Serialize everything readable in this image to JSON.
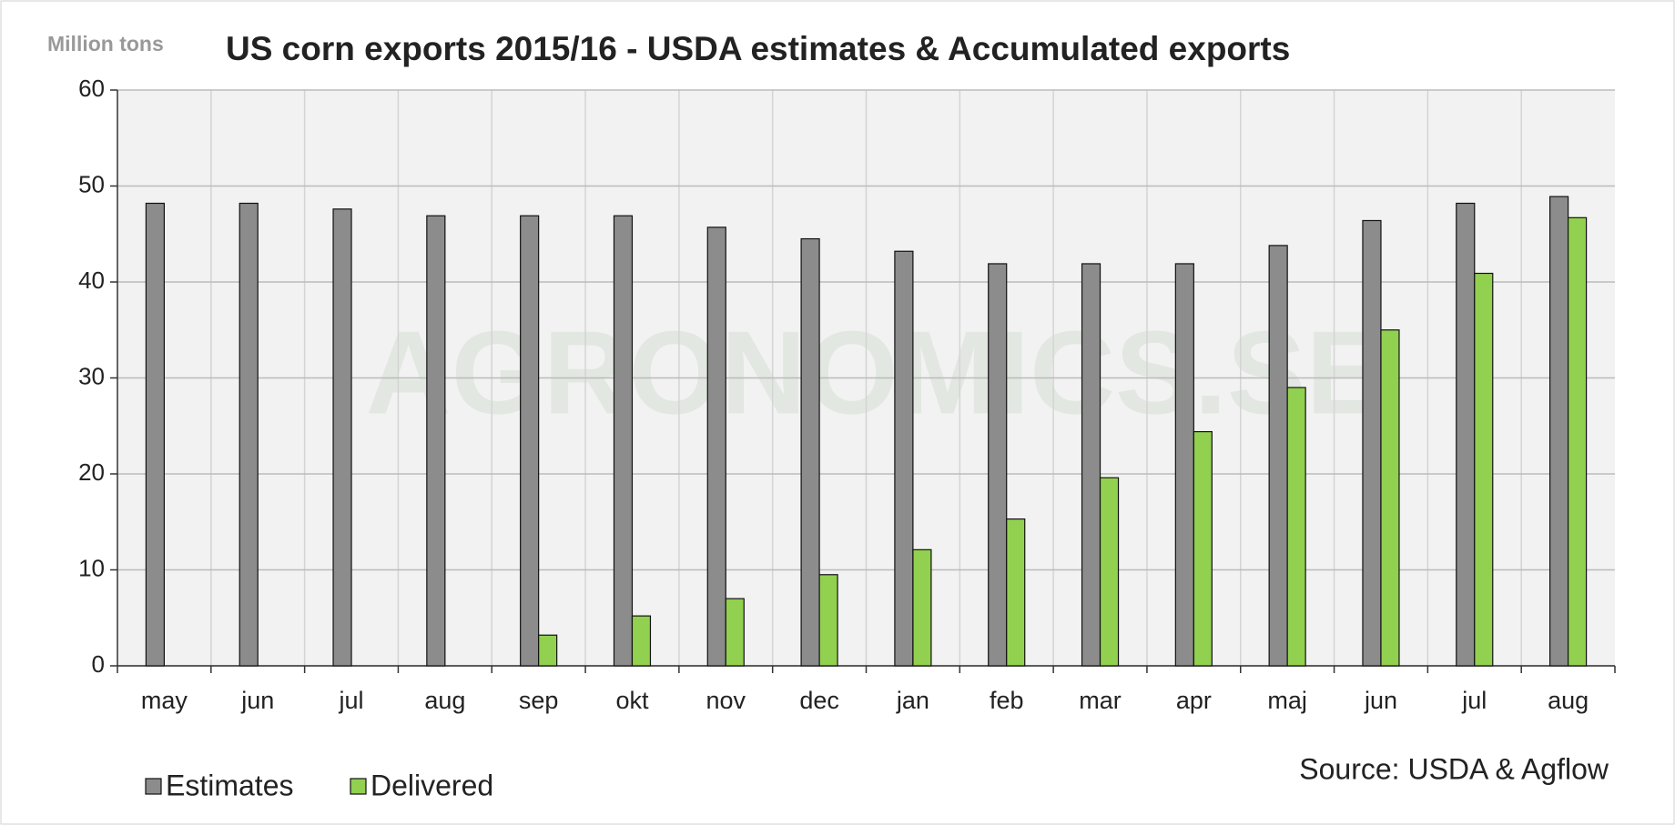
{
  "chart_data": {
    "type": "bar",
    "title": "US corn exports 2015/16  - USDA estimates & Accumulated exports",
    "y_label": "Million tons",
    "watermark": "AGRONOMICS.SE",
    "source": "Source: USDA & Agflow",
    "categories": [
      "may",
      "jun",
      "jul",
      "aug",
      "sep",
      "okt",
      "nov",
      "dec",
      "jan",
      "feb",
      "mar",
      "apr",
      "maj",
      "jun",
      "jul",
      "aug"
    ],
    "series": [
      {
        "name": "Estimates",
        "color": "#8c8c8c",
        "values": [
          48.2,
          48.2,
          47.6,
          46.9,
          46.9,
          46.9,
          45.7,
          44.5,
          43.2,
          41.9,
          41.9,
          41.9,
          43.8,
          46.4,
          48.2,
          48.9
        ]
      },
      {
        "name": "Delivered",
        "color": "#92d050",
        "values": [
          null,
          null,
          null,
          null,
          3.2,
          5.2,
          7.0,
          9.5,
          12.1,
          15.3,
          19.6,
          24.4,
          29.0,
          35.0,
          40.9,
          46.7
        ]
      }
    ],
    "ylim": [
      0,
      60
    ],
    "yticks": [
      0,
      10,
      20,
      30,
      40,
      50,
      60
    ],
    "grid": true,
    "legend": "bottom-left"
  }
}
